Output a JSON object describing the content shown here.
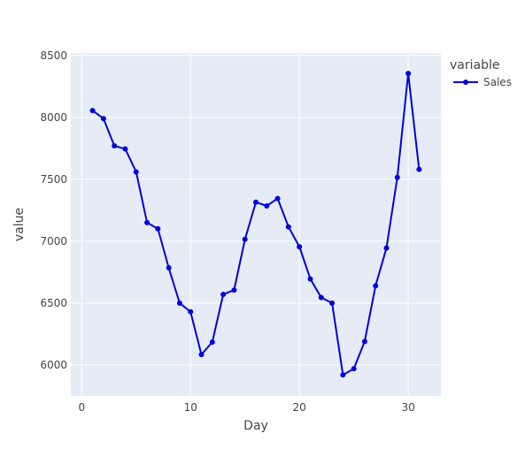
{
  "chart_data": {
    "type": "line",
    "title": "",
    "xlabel": "Day",
    "ylabel": "value",
    "xlim": [
      -1,
      33
    ],
    "ylim": [
      5750,
      8520
    ],
    "xticks": [
      0,
      10,
      20,
      30
    ],
    "yticks": [
      6000,
      6500,
      7000,
      7500,
      8000,
      8500
    ],
    "grid": true,
    "legend": {
      "title": "variable",
      "placement": "top-right"
    },
    "series": [
      {
        "name": "Sales",
        "color": "#0000dd",
        "marker": "circle",
        "x": [
          1,
          2,
          3,
          4,
          5,
          6,
          7,
          8,
          9,
          10,
          11,
          12,
          13,
          14,
          15,
          16,
          17,
          18,
          19,
          20,
          21,
          22,
          23,
          24,
          25,
          26,
          27,
          28,
          29,
          30,
          31
        ],
        "y": [
          8055,
          7990,
          7770,
          7745,
          7560,
          7150,
          7100,
          6785,
          6500,
          6430,
          6085,
          6185,
          6570,
          6605,
          7015,
          7315,
          7285,
          7345,
          7115,
          6955,
          6695,
          6545,
          6500,
          5920,
          5970,
          6190,
          6640,
          6945,
          7515,
          8355,
          7580
        ]
      }
    ]
  },
  "colors": {
    "plot_bg": "#e5ecf6",
    "grid": "#ffffff",
    "series": "#0000dd"
  }
}
